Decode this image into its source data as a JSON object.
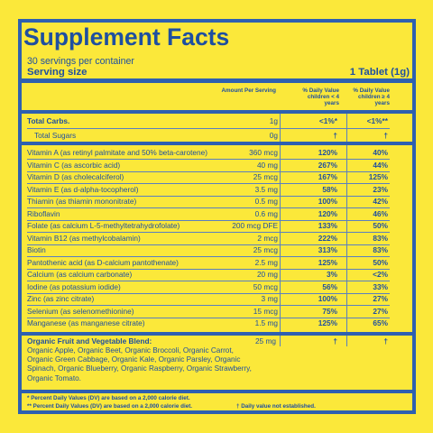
{
  "title": "Supplement Facts",
  "servings_per_container": "30 servings per container",
  "serving_size_label": "Serving size",
  "serving_size_value": "1 Tablet (1g)",
  "header": {
    "amount": "Amount Per Serving",
    "dv_under4_l1": "% Daily Value",
    "dv_under4_l2": "children < 4",
    "dv_under4_l3": "years",
    "dv_over4_l1": "% Daily Value",
    "dv_over4_l2": "children ≥ 4",
    "dv_over4_l3": "years"
  },
  "carbs": [
    {
      "name": "Total Carbs.",
      "amount": "1g",
      "dv1": "<1%*",
      "dv2": "<1%**"
    },
    {
      "name": "Total Sugars",
      "amount": "0g",
      "dv1": "†",
      "dv2": "†"
    }
  ],
  "nutrients": [
    {
      "name": "Vitamin A",
      "sub": "(as retinyl palmitate and 50% beta-carotene)",
      "amount": "360 mcg",
      "dv1": "120%",
      "dv2": "40%"
    },
    {
      "name": "Vitamin C",
      "sub": "(as ascorbic acid)",
      "amount": "40 mg",
      "dv1": "267%",
      "dv2": "44%"
    },
    {
      "name": "Vitamin D",
      "sub": "(as cholecalciferol)",
      "amount": "25 mcg",
      "dv1": "167%",
      "dv2": "125%"
    },
    {
      "name": "Vitamin E",
      "sub": "(as d-alpha-tocopherol)",
      "amount": "3.5 mg",
      "dv1": "58%",
      "dv2": "23%"
    },
    {
      "name": "Thiamin",
      "sub": "(as thiamin mononitrate)",
      "amount": "0.5 mg",
      "dv1": "100%",
      "dv2": "42%"
    },
    {
      "name": "Riboflavin",
      "sub": "",
      "amount": "0.6 mg",
      "dv1": "120%",
      "dv2": "46%"
    },
    {
      "name": "Folate",
      "sub": "(as calcium L-5-methyltetrahydrofolate)",
      "amount": "200 mcg DFE",
      "dv1": "133%",
      "dv2": "50%"
    },
    {
      "name": "Vitamin B12",
      "sub": "(as methylcobalamin)",
      "amount": "2 mcg",
      "dv1": "222%",
      "dv2": "83%"
    },
    {
      "name": "Biotin",
      "sub": "",
      "amount": "25 mcg",
      "dv1": "313%",
      "dv2": "83%"
    },
    {
      "name": "Pantothenic acid",
      "sub": "(as D-calcium pantothenate)",
      "amount": "2.5 mg",
      "dv1": "125%",
      "dv2": "50%"
    },
    {
      "name": "Calcium",
      "sub": "(as calcium carbonate)",
      "amount": "20 mg",
      "dv1": "3%",
      "dv2": "<2%"
    },
    {
      "name": "Iodine",
      "sub": "(as potassium iodide)",
      "amount": "50 mcg",
      "dv1": "56%",
      "dv2": "33%"
    },
    {
      "name": "Zinc",
      "sub": "(as zinc citrate)",
      "amount": "3 mg",
      "dv1": "100%",
      "dv2": "27%"
    },
    {
      "name": "Selenium",
      "sub": "(as selenomethionine)",
      "amount": "15 mcg",
      "dv1": "75%",
      "dv2": "27%"
    },
    {
      "name": "Manganese",
      "sub": "(as manganese citrate)",
      "amount": "1.5 mg",
      "dv1": "125%",
      "dv2": "65%"
    }
  ],
  "blend": {
    "name": "Organic Fruit and Vegetable Blend:",
    "ingredients": "Organic Apple, Organic Beet, Organic Broccoli, Organic Carrot, Organic Green Cabbage, Organic Kale, Organic Parsley, Organic Spinach, Organic Blueberry, Organic Raspberry, Organic Strawberry, Organic Tomato.",
    "amount": "25 mg",
    "dv1": "†",
    "dv2": "†"
  },
  "footnotes": {
    "f1": "* Percent Daily Values (DV) are based on a 2,000 calorie diet.",
    "f2a": "** Percent Daily Values (DV) are based on a 2,000 calorie diet.",
    "f2b": "† Daily value not established."
  },
  "colors": {
    "background": "#FBE83A",
    "ink": "#1E4FA0",
    "rule": "#2E60B0"
  }
}
